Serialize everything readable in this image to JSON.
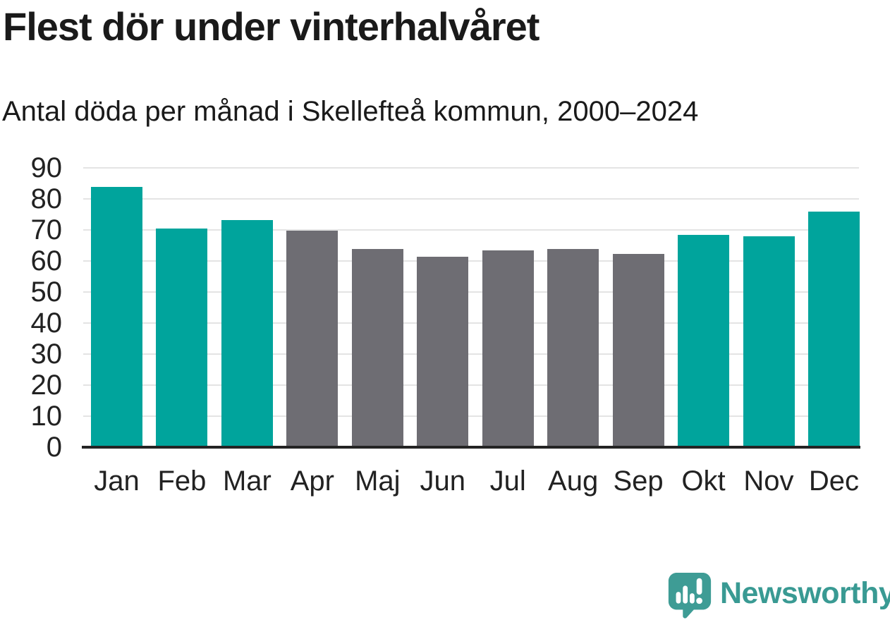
{
  "header": {
    "title": "Flest dör under vinterhalvåret",
    "subtitle": "Antal döda per månad i Skellefteå kommun, 2000–2024"
  },
  "chart_data": {
    "type": "bar",
    "title": "Flest dör under vinterhalvåret",
    "subtitle": "Antal döda per månad i Skellefteå kommun, 2000–2024",
    "categories": [
      "Jan",
      "Feb",
      "Mar",
      "Apr",
      "Maj",
      "Jun",
      "Jul",
      "Aug",
      "Sep",
      "Okt",
      "Nov",
      "Dec"
    ],
    "values": [
      83.8,
      70.4,
      73.2,
      69.8,
      63.8,
      61.4,
      63.4,
      63.9,
      62.3,
      68.4,
      68.0,
      75.9
    ],
    "highlighted": [
      true,
      true,
      true,
      false,
      false,
      false,
      false,
      false,
      false,
      true,
      true,
      true
    ],
    "xlabel": "",
    "ylabel": "",
    "ylim": [
      0,
      90
    ],
    "yticks": [
      0,
      10,
      20,
      30,
      40,
      50,
      60,
      70,
      80,
      90
    ],
    "grid": true,
    "legend_position": "none"
  },
  "colors": {
    "bar_winter": "#00a49c",
    "bar_summer": "#6e6d73",
    "gridline": "#e4e4e4",
    "axis_line": "#242424",
    "text": "#1a1a1a",
    "brand_teal": "#399a93",
    "logo_teal": "#3e9c95"
  },
  "footer": {
    "brand_name": "Newsworthy"
  }
}
